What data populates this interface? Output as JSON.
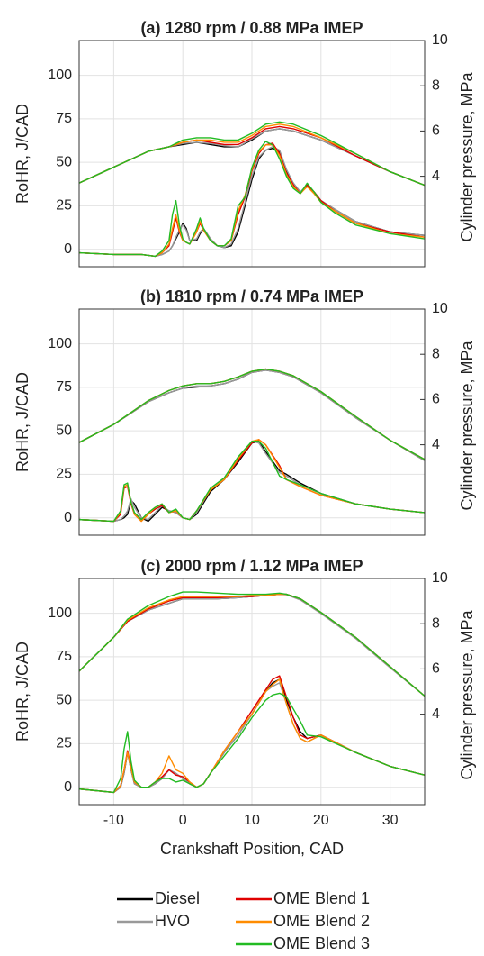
{
  "legend": [
    {
      "name": "Diesel",
      "color": "#000000"
    },
    {
      "name": "HVO",
      "color": "#999999"
    },
    {
      "name": "OME Blend 1",
      "color": "#e00000"
    },
    {
      "name": "OME Blend 2",
      "color": "#ff8c00"
    },
    {
      "name": "OME Blend 3",
      "color": "#22bb22"
    }
  ],
  "chart_data": [
    {
      "type": "line",
      "title": "(a) 1280 rpm / 0.88 MPa IMEP",
      "ylabel": "RoHR, J/CAD",
      "y2label": "Cylinder pressure, MPa",
      "xlim": [
        -15,
        35
      ],
      "xticks": [
        -10,
        0,
        10,
        20,
        30
      ],
      "ylim": [
        -10,
        120
      ],
      "yticks": [
        0,
        25,
        50,
        75,
        100
      ],
      "y2lim": [
        0,
        10
      ],
      "y2ticks": [
        4,
        6,
        8,
        10
      ],
      "grid": true,
      "x": [
        -15,
        -10,
        -6,
        -4,
        -3,
        -2,
        -1.5,
        -1,
        -0.5,
        0,
        0.5,
        1,
        2,
        2.5,
        3,
        4,
        5,
        6,
        7,
        8,
        9,
        10,
        11,
        12,
        13,
        14,
        15,
        16,
        17,
        18,
        19,
        20,
        22,
        25,
        30,
        35
      ],
      "x_pressure": [
        -15,
        -10,
        -5,
        -2,
        0,
        2,
        4,
        6,
        8,
        10,
        12,
        14,
        16,
        20,
        25,
        30,
        35
      ],
      "series": [
        {
          "values": [
            -2,
            -3,
            -3,
            -4,
            -3,
            -1,
            2,
            6,
            10,
            15,
            12,
            5,
            5,
            9,
            12,
            6,
            2,
            1,
            2,
            10,
            25,
            40,
            52,
            57,
            58,
            56,
            45,
            38,
            33,
            36,
            33,
            28,
            23,
            16,
            10,
            8
          ],
          "pressure": [
            3.7,
            4.4,
            5.1,
            5.3,
            5.4,
            5.5,
            5.4,
            5.3,
            5.3,
            5.6,
            6.0,
            6.1,
            6.0,
            5.6,
            4.9,
            4.2,
            3.6
          ]
        },
        {
          "values": [
            -2,
            -3,
            -3,
            -4,
            -3,
            -1,
            2,
            7,
            11,
            14,
            11,
            5,
            6,
            10,
            12,
            6,
            2,
            1,
            3,
            12,
            27,
            42,
            53,
            57,
            59,
            57,
            46,
            38,
            33,
            37,
            33,
            28,
            23,
            16,
            10,
            8
          ],
          "pressure": [
            3.7,
            4.4,
            5.1,
            5.3,
            5.45,
            5.5,
            5.45,
            5.35,
            5.3,
            5.65,
            6.0,
            6.1,
            6.0,
            5.6,
            4.9,
            4.2,
            3.6
          ]
        },
        {
          "values": [
            -2,
            -3,
            -3,
            -4,
            -2,
            2,
            10,
            18,
            10,
            5,
            4,
            3,
            10,
            15,
            11,
            5,
            2,
            2,
            5,
            20,
            30,
            45,
            55,
            60,
            61,
            55,
            44,
            37,
            32,
            37,
            33,
            28,
            22,
            15,
            10,
            7
          ],
          "pressure": [
            3.7,
            4.4,
            5.1,
            5.3,
            5.5,
            5.6,
            5.5,
            5.4,
            5.4,
            5.7,
            6.1,
            6.2,
            6.1,
            5.7,
            4.9,
            4.2,
            3.6
          ]
        },
        {
          "values": [
            -2,
            -3,
            -3,
            -4,
            -2,
            3,
            12,
            20,
            11,
            5,
            4,
            3,
            10,
            16,
            11,
            5,
            2,
            2,
            5,
            22,
            31,
            46,
            56,
            60,
            60,
            54,
            43,
            36,
            32,
            36,
            32,
            27,
            22,
            15,
            9,
            7
          ],
          "pressure": [
            3.7,
            4.4,
            5.1,
            5.3,
            5.5,
            5.6,
            5.6,
            5.5,
            5.5,
            5.8,
            6.2,
            6.3,
            6.2,
            5.7,
            5.0,
            4.2,
            3.6
          ]
        },
        {
          "values": [
            -2,
            -3,
            -3,
            -4,
            -1,
            5,
            20,
            28,
            14,
            6,
            4,
            3,
            12,
            18,
            12,
            5,
            2,
            2,
            6,
            25,
            30,
            47,
            57,
            62,
            60,
            52,
            42,
            35,
            32,
            38,
            33,
            27,
            21,
            14,
            9,
            6
          ],
          "pressure": [
            3.7,
            4.4,
            5.1,
            5.3,
            5.6,
            5.7,
            5.7,
            5.6,
            5.6,
            5.9,
            6.3,
            6.4,
            6.3,
            5.8,
            5.0,
            4.2,
            3.6
          ]
        }
      ]
    },
    {
      "type": "line",
      "title": "(b) 1810 rpm / 0.74 MPa IMEP",
      "ylabel": "RoHR, J/CAD",
      "y2label": "Cylinder pressure, MPa",
      "xlim": [
        -15,
        35
      ],
      "xticks": [
        -10,
        0,
        10,
        20,
        30
      ],
      "ylim": [
        -10,
        120
      ],
      "yticks": [
        0,
        25,
        50,
        75,
        100
      ],
      "y2lim": [
        0,
        10
      ],
      "y2ticks": [
        4,
        6,
        8,
        10
      ],
      "grid": true,
      "x": [
        -15,
        -10,
        -9,
        -8.5,
        -8,
        -7.5,
        -7,
        -6,
        -5,
        -4,
        -3,
        -2,
        -1,
        0,
        1,
        2,
        4,
        6,
        8,
        10,
        11,
        12,
        14,
        15,
        17,
        20,
        25,
        30,
        35
      ],
      "x_pressure": [
        -15,
        -10,
        -5,
        -2,
        0,
        2,
        4,
        6,
        8,
        10,
        12,
        14,
        16,
        20,
        25,
        30,
        35
      ],
      "series": [
        {
          "values": [
            -1,
            -2,
            -1,
            0,
            2,
            10,
            8,
            0,
            -2,
            2,
            6,
            4,
            3,
            0,
            -1,
            2,
            15,
            22,
            32,
            43,
            44,
            38,
            27,
            25,
            20,
            14,
            8,
            5,
            3
          ],
          "pressure": [
            4.1,
            4.9,
            5.9,
            6.3,
            6.5,
            6.55,
            6.6,
            6.7,
            6.9,
            7.2,
            7.3,
            7.2,
            7.0,
            6.3,
            5.2,
            4.2,
            3.3
          ]
        },
        {
          "values": [
            -1,
            -2,
            -1,
            1,
            4,
            11,
            6,
            0,
            -1,
            3,
            7,
            4,
            3,
            0,
            -1,
            3,
            16,
            22,
            33,
            44,
            43,
            37,
            26,
            24,
            19,
            14,
            8,
            5,
            3
          ],
          "pressure": [
            4.1,
            4.9,
            5.9,
            6.3,
            6.5,
            6.6,
            6.6,
            6.7,
            6.9,
            7.2,
            7.3,
            7.2,
            7.0,
            6.3,
            5.2,
            4.2,
            3.3
          ]
        },
        {
          "values": [
            -1,
            -2,
            2,
            17,
            18,
            8,
            2,
            -2,
            2,
            5,
            7,
            3,
            4,
            0,
            -1,
            4,
            16,
            22,
            33,
            43,
            45,
            42,
            30,
            22,
            18,
            13,
            8,
            5,
            3
          ],
          "pressure": [
            4.1,
            4.9,
            5.95,
            6.4,
            6.6,
            6.7,
            6.7,
            6.8,
            7.0,
            7.25,
            7.35,
            7.25,
            7.05,
            6.35,
            5.25,
            4.2,
            3.35
          ]
        },
        {
          "values": [
            -1,
            -2,
            3,
            18,
            19,
            9,
            2,
            -2,
            2,
            6,
            8,
            3,
            4,
            0,
            -1,
            4,
            16,
            22,
            34,
            44,
            45,
            42,
            29,
            22,
            18,
            13,
            8,
            5,
            3
          ],
          "pressure": [
            4.1,
            4.9,
            5.95,
            6.4,
            6.6,
            6.7,
            6.7,
            6.8,
            7.0,
            7.25,
            7.35,
            7.25,
            7.05,
            6.35,
            5.25,
            4.2,
            3.35
          ]
        },
        {
          "values": [
            -1,
            -2,
            4,
            19,
            20,
            9,
            3,
            -1,
            3,
            6,
            8,
            3,
            5,
            0,
            -1,
            4,
            17,
            23,
            35,
            44,
            44,
            40,
            24,
            22,
            19,
            14,
            8,
            5,
            3
          ],
          "pressure": [
            4.1,
            4.9,
            5.95,
            6.4,
            6.6,
            6.7,
            6.7,
            6.8,
            7.0,
            7.25,
            7.35,
            7.25,
            7.05,
            6.35,
            5.25,
            4.2,
            3.35
          ]
        }
      ]
    },
    {
      "type": "line",
      "title": "(c) 2000 rpm / 1.12 MPa IMEP",
      "ylabel": "RoHR, J/CAD",
      "y2label": "Cylinder pressure, MPa",
      "xlabel": "Crankshaft Position, CAD",
      "xlim": [
        -15,
        35
      ],
      "xticks": [
        -10,
        0,
        10,
        20,
        30
      ],
      "ylim": [
        -10,
        120
      ],
      "yticks": [
        0,
        25,
        50,
        75,
        100
      ],
      "y2lim": [
        0,
        10
      ],
      "y2ticks": [
        4,
        6,
        8,
        10
      ],
      "grid": true,
      "x": [
        -15,
        -10,
        -9,
        -8.5,
        -8,
        -7.5,
        -7,
        -6,
        -5,
        -4,
        -3,
        -2,
        -1,
        0,
        1,
        2,
        3,
        4,
        6,
        8,
        10,
        12,
        13,
        14,
        15,
        16,
        17,
        18,
        20,
        25,
        30,
        35
      ],
      "x_pressure": [
        -15,
        -10,
        -8,
        -5,
        -2,
        0,
        2,
        5,
        8,
        10,
        12,
        14,
        15,
        17,
        20,
        25,
        30,
        35
      ],
      "series": [
        {
          "values": [
            -1,
            -3,
            0,
            8,
            20,
            10,
            2,
            0,
            0,
            2,
            5,
            10,
            8,
            5,
            2,
            0,
            2,
            8,
            20,
            30,
            42,
            55,
            60,
            62,
            50,
            40,
            32,
            28,
            30,
            20,
            12,
            7
          ],
          "pressure": [
            5.9,
            7.4,
            8.1,
            8.6,
            8.9,
            9.1,
            9.1,
            9.1,
            9.15,
            9.2,
            9.25,
            9.3,
            9.3,
            9.1,
            8.5,
            7.4,
            6.1,
            4.8
          ]
        },
        {
          "values": [
            -1,
            -3,
            0,
            8,
            20,
            10,
            2,
            0,
            0,
            2,
            5,
            10,
            8,
            5,
            2,
            0,
            2,
            8,
            20,
            30,
            42,
            55,
            58,
            60,
            48,
            36,
            28,
            26,
            30,
            20,
            12,
            7
          ],
          "pressure": [
            5.9,
            7.4,
            8.1,
            8.6,
            8.9,
            9.1,
            9.1,
            9.1,
            9.15,
            9.2,
            9.25,
            9.3,
            9.28,
            9.05,
            8.45,
            7.35,
            6.05,
            4.8
          ]
        },
        {
          "values": [
            -1,
            -3,
            1,
            10,
            21,
            12,
            3,
            0,
            0,
            3,
            6,
            10,
            7,
            6,
            3,
            0,
            2,
            8,
            21,
            32,
            44,
            56,
            62,
            64,
            52,
            40,
            30,
            28,
            30,
            20,
            12,
            7
          ],
          "pressure": [
            5.9,
            7.4,
            8.1,
            8.65,
            9.0,
            9.15,
            9.15,
            9.15,
            9.2,
            9.2,
            9.25,
            9.3,
            9.3,
            9.1,
            8.5,
            7.4,
            6.1,
            4.8
          ]
        },
        {
          "values": [
            -1,
            -3,
            1,
            10,
            20,
            11,
            3,
            0,
            0,
            3,
            8,
            18,
            10,
            8,
            3,
            0,
            2,
            8,
            21,
            32,
            42,
            55,
            59,
            62,
            48,
            36,
            28,
            26,
            30,
            20,
            12,
            7
          ],
          "pressure": [
            5.9,
            7.4,
            8.15,
            8.7,
            9.05,
            9.2,
            9.2,
            9.2,
            9.2,
            9.25,
            9.25,
            9.3,
            9.3,
            9.1,
            8.5,
            7.4,
            6.1,
            4.8
          ]
        },
        {
          "values": [
            -1,
            -3,
            5,
            22,
            32,
            15,
            4,
            0,
            0,
            3,
            5,
            5,
            3,
            4,
            2,
            0,
            2,
            8,
            18,
            28,
            40,
            50,
            53,
            54,
            52,
            45,
            38,
            30,
            29,
            20,
            12,
            7
          ],
          "pressure": [
            5.9,
            7.4,
            8.2,
            8.8,
            9.2,
            9.4,
            9.4,
            9.35,
            9.3,
            9.3,
            9.3,
            9.35,
            9.3,
            9.1,
            8.5,
            7.4,
            6.1,
            4.8
          ]
        }
      ]
    }
  ]
}
